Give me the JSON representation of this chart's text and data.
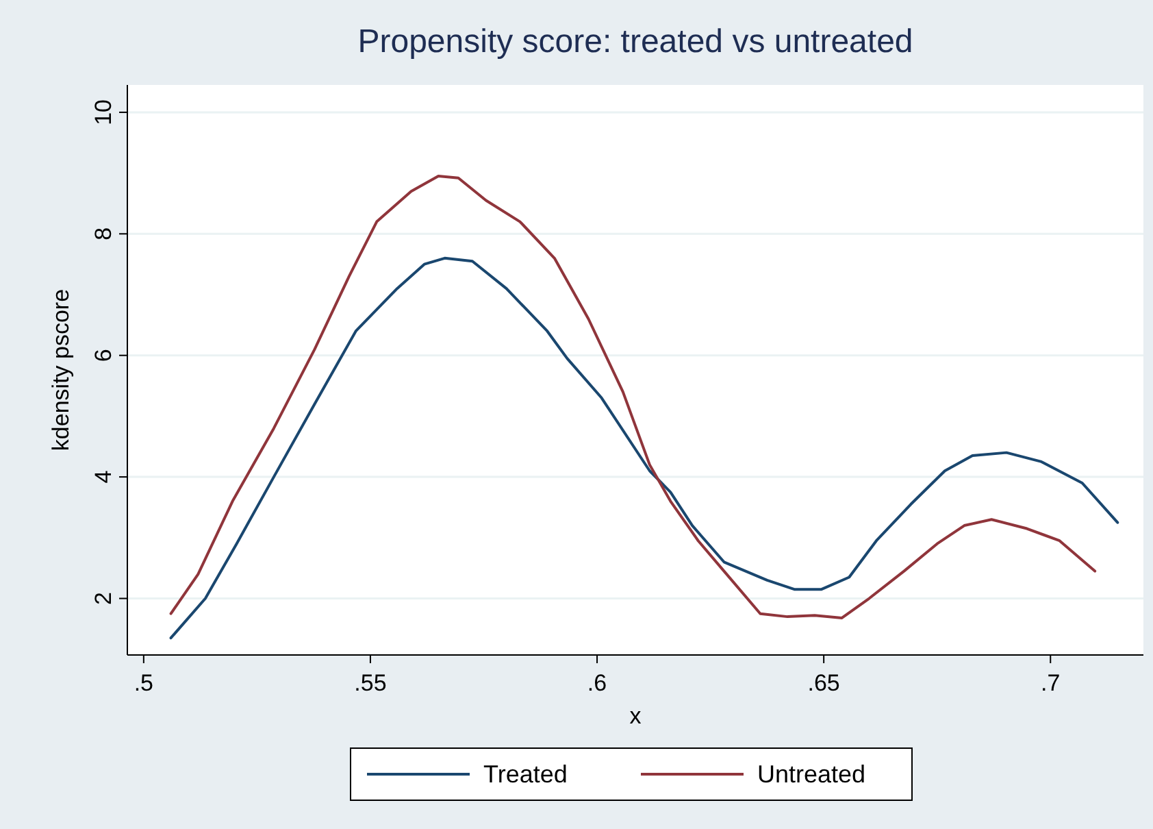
{
  "chart_data": {
    "type": "line",
    "title": "Propensity score: treated vs untreated",
    "xlabel": "x",
    "ylabel": "kdensity pscore",
    "xlim": [
      0.4964,
      0.7205
    ],
    "ylim": [
      1.07,
      10.45
    ],
    "xticks": [
      {
        "value": 0.5,
        "label": ".5"
      },
      {
        "value": 0.55,
        "label": ".55"
      },
      {
        "value": 0.6,
        "label": ".6"
      },
      {
        "value": 0.65,
        "label": ".65"
      },
      {
        "value": 0.7,
        "label": ".7"
      }
    ],
    "yticks": [
      2,
      4,
      6,
      8,
      10
    ],
    "grid": "y",
    "legend": "bottom",
    "marker": "none",
    "line_style": "solid",
    "series": [
      {
        "name": "Treated",
        "color": "#1a476f",
        "x": [
          0.506,
          0.5136,
          0.5205,
          0.5287,
          0.5377,
          0.5468,
          0.5559,
          0.5619,
          0.5664,
          0.5725,
          0.58,
          0.589,
          0.5934,
          0.601,
          0.6116,
          0.6162,
          0.621,
          0.628,
          0.6375,
          0.6435,
          0.6495,
          0.6556,
          0.6616,
          0.6692,
          0.6767,
          0.6828,
          0.6903,
          0.698,
          0.707,
          0.7148
        ],
        "values": [
          1.35,
          2.0,
          2.9,
          4.0,
          5.2,
          6.4,
          7.1,
          7.5,
          7.6,
          7.55,
          7.1,
          6.4,
          5.95,
          5.3,
          4.1,
          3.75,
          3.2,
          2.6,
          2.3,
          2.15,
          2.15,
          2.35,
          2.95,
          3.55,
          4.1,
          4.35,
          4.4,
          4.25,
          3.9,
          3.25
        ]
      },
      {
        "name": "Untreated",
        "color": "#90353b",
        "x": [
          0.506,
          0.512,
          0.5196,
          0.5287,
          0.5377,
          0.5453,
          0.5514,
          0.559,
          0.565,
          0.5694,
          0.5755,
          0.583,
          0.5906,
          0.5981,
          0.6057,
          0.6116,
          0.6162,
          0.6223,
          0.628,
          0.636,
          0.642,
          0.648,
          0.654,
          0.66,
          0.6677,
          0.675,
          0.681,
          0.687,
          0.6948,
          0.702,
          0.7098
        ],
        "values": [
          1.75,
          2.4,
          3.6,
          4.8,
          6.1,
          7.3,
          8.2,
          8.7,
          8.95,
          8.92,
          8.55,
          8.2,
          7.6,
          6.6,
          5.4,
          4.2,
          3.6,
          2.95,
          2.45,
          1.75,
          1.7,
          1.72,
          1.68,
          2.0,
          2.45,
          2.9,
          3.2,
          3.3,
          3.15,
          2.95,
          2.45
        ]
      }
    ]
  }
}
